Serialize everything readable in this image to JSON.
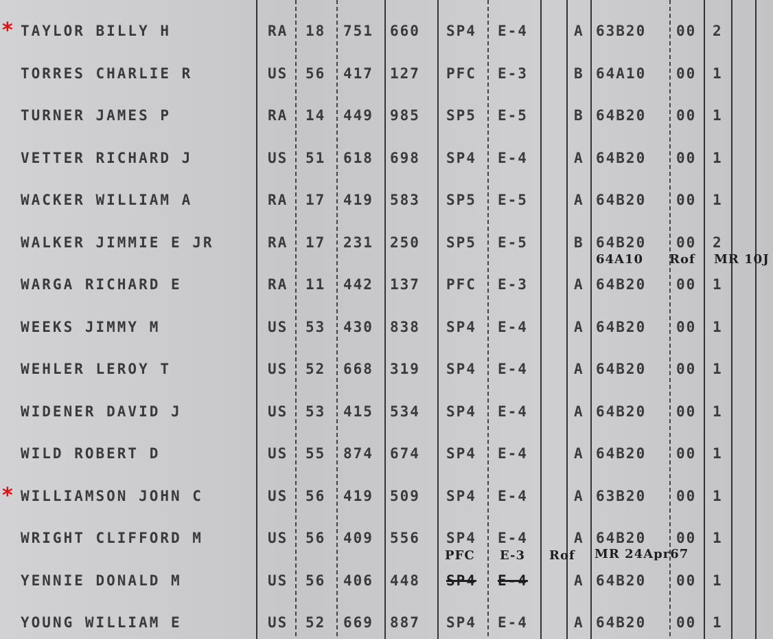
{
  "marker_color": "#e01010",
  "rows": [
    {
      "name": "TAYLOR BILLY H",
      "marked": true,
      "svc": "RA",
      "n1": "18",
      "n2": "751",
      "n3": "660",
      "rank": "SP4",
      "grade": "E-4",
      "code": "A",
      "mos": "63B20",
      "x": "00",
      "y": "2"
    },
    {
      "name": "TORRES CHARLIE R",
      "marked": false,
      "svc": "US",
      "n1": "56",
      "n2": "417",
      "n3": "127",
      "rank": "PFC",
      "grade": "E-3",
      "code": "B",
      "mos": "64A10",
      "x": "00",
      "y": "1"
    },
    {
      "name": "TURNER JAMES P",
      "marked": false,
      "svc": "RA",
      "n1": "14",
      "n2": "449",
      "n3": "985",
      "rank": "SP5",
      "grade": "E-5",
      "code": "B",
      "mos": "64B20",
      "x": "00",
      "y": "1"
    },
    {
      "name": "VETTER RICHARD J",
      "marked": false,
      "svc": "US",
      "n1": "51",
      "n2": "618",
      "n3": "698",
      "rank": "SP4",
      "grade": "E-4",
      "code": "A",
      "mos": "64B20",
      "x": "00",
      "y": "1"
    },
    {
      "name": "WACKER WILLIAM A",
      "marked": false,
      "svc": "RA",
      "n1": "17",
      "n2": "419",
      "n3": "583",
      "rank": "SP5",
      "grade": "E-5",
      "code": "A",
      "mos": "64B20",
      "x": "00",
      "y": "1"
    },
    {
      "name": "WALKER JIMMIE E JR",
      "marked": false,
      "svc": "RA",
      "n1": "17",
      "n2": "231",
      "n3": "250",
      "rank": "SP5",
      "grade": "E-5",
      "code": "B",
      "mos": "64B20",
      "x": "00",
      "y": "2"
    },
    {
      "name": "WARGA RICHARD E",
      "marked": false,
      "svc": "RA",
      "n1": "11",
      "n2": "442",
      "n3": "137",
      "rank": "PFC",
      "grade": "E-3",
      "code": "A",
      "mos": "64B20",
      "x": "00",
      "y": "1"
    },
    {
      "name": "WEEKS JIMMY M",
      "marked": false,
      "svc": "US",
      "n1": "53",
      "n2": "430",
      "n3": "838",
      "rank": "SP4",
      "grade": "E-4",
      "code": "A",
      "mos": "64B20",
      "x": "00",
      "y": "1"
    },
    {
      "name": "WEHLER LEROY T",
      "marked": false,
      "svc": "US",
      "n1": "52",
      "n2": "668",
      "n3": "319",
      "rank": "SP4",
      "grade": "E-4",
      "code": "A",
      "mos": "64B20",
      "x": "00",
      "y": "1"
    },
    {
      "name": "WIDENER DAVID J",
      "marked": false,
      "svc": "US",
      "n1": "53",
      "n2": "415",
      "n3": "534",
      "rank": "SP4",
      "grade": "E-4",
      "code": "A",
      "mos": "64B20",
      "x": "00",
      "y": "1"
    },
    {
      "name": "WILD ROBERT D",
      "marked": false,
      "svc": "US",
      "n1": "55",
      "n2": "874",
      "n3": "674",
      "rank": "SP4",
      "grade": "E-4",
      "code": "A",
      "mos": "64B20",
      "x": "00",
      "y": "1"
    },
    {
      "name": "WILLIAMSON JOHN C",
      "marked": true,
      "svc": "US",
      "n1": "56",
      "n2": "419",
      "n3": "509",
      "rank": "SP4",
      "grade": "E-4",
      "code": "A",
      "mos": "63B20",
      "x": "00",
      "y": "1"
    },
    {
      "name": "WRIGHT CLIFFORD M",
      "marked": false,
      "svc": "US",
      "n1": "56",
      "n2": "409",
      "n3": "556",
      "rank": "SP4",
      "grade": "E-4",
      "code": "A",
      "mos": "64B20",
      "x": "00",
      "y": "1"
    },
    {
      "name": "YENNIE DONALD M",
      "marked": false,
      "svc": "US",
      "n1": "56",
      "n2": "406",
      "n3": "448",
      "rank": "SP4",
      "grade": "E-4",
      "code": "A",
      "mos": "64B20",
      "x": "00",
      "y": "1",
      "struck": true
    },
    {
      "name": "YOUNG WILLIAM E",
      "marked": false,
      "svc": "US",
      "n1": "52",
      "n2": "669",
      "n3": "887",
      "rank": "SP4",
      "grade": "E-4",
      "code": "A",
      "mos": "64B20",
      "x": "00",
      "y": "1"
    }
  ],
  "annotations": {
    "walker_mos": "64A10",
    "walker_ref": "Rof",
    "walker_auth": "MR 10J",
    "yennie_rank": "PFC",
    "yennie_grade": "E-3",
    "yennie_ref": "Rof",
    "yennie_auth": "MR 24Apr67"
  }
}
